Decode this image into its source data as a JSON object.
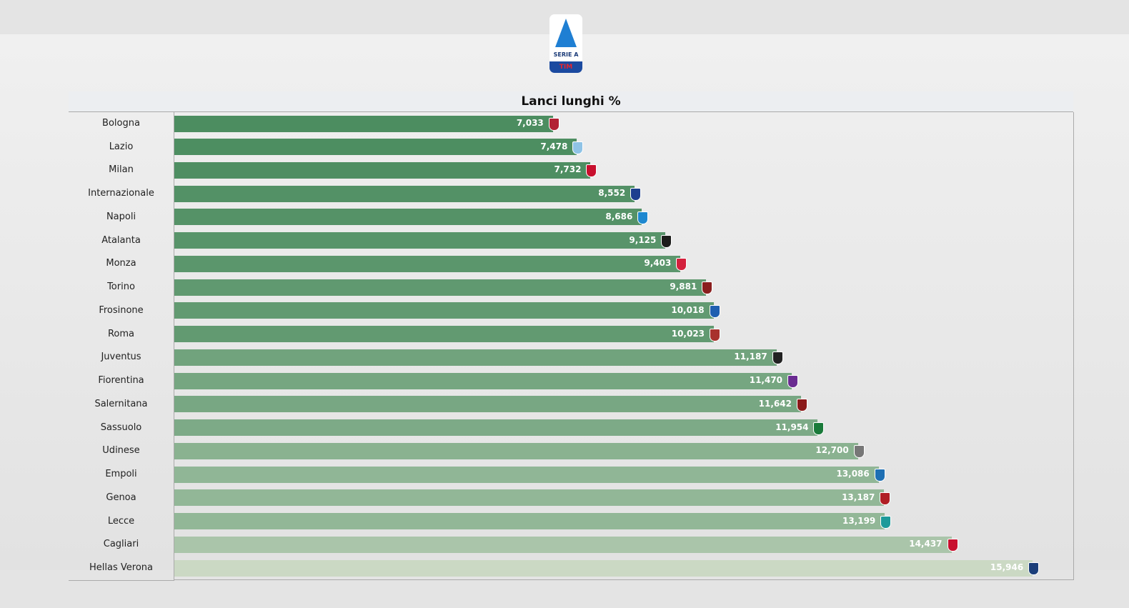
{
  "header": {
    "logo_text": "SERIE A",
    "logo_sponsor": "TIM"
  },
  "chart_data": {
    "type": "bar",
    "orientation": "horizontal",
    "title": "Lanci lunghi %",
    "categories": [
      "Bologna",
      "Lazio",
      "Milan",
      "Internazionale",
      "Napoli",
      "Atalanta",
      "Monza",
      "Torino",
      "Frosinone",
      "Roma",
      "Juventus",
      "Fiorentina",
      "Salernitana",
      "Sassuolo",
      "Udinese",
      "Empoli",
      "Genoa",
      "Lecce",
      "Cagliari",
      "Hellas Verona"
    ],
    "values": [
      7.033,
      7.478,
      7.732,
      8.552,
      8.686,
      9.125,
      9.403,
      9.881,
      10.018,
      10.023,
      11.187,
      11.47,
      11.642,
      11.954,
      12.7,
      13.086,
      13.187,
      13.199,
      14.437,
      15.946
    ],
    "value_labels": [
      "7,033",
      "7,478",
      "7,732",
      "8,552",
      "8,686",
      "9,125",
      "9,403",
      "9,881",
      "10,018",
      "10,023",
      "11,187",
      "11,470",
      "11,642",
      "11,954",
      "12,700",
      "13,086",
      "13,187",
      "13,199",
      "14,437",
      "15,946"
    ],
    "crest_colors": [
      "#b22234",
      "#8fc3e6",
      "#c8102e",
      "#1d3f8f",
      "#1e88d0",
      "#1d1d1b",
      "#d4213d",
      "#8a1e1e",
      "#1f5fb0",
      "#a8322d",
      "#222222",
      "#6a2c91",
      "#8b1a1a",
      "#1a7a3a",
      "#777777",
      "#1e6fb3",
      "#b01e24",
      "#1d9a9a",
      "#c8102e",
      "#1c3f7a"
    ],
    "color_dark": "#4c8d60",
    "color_light": "#cbd9c4",
    "xlim": [
      0,
      16.7
    ],
    "grid": false
  }
}
